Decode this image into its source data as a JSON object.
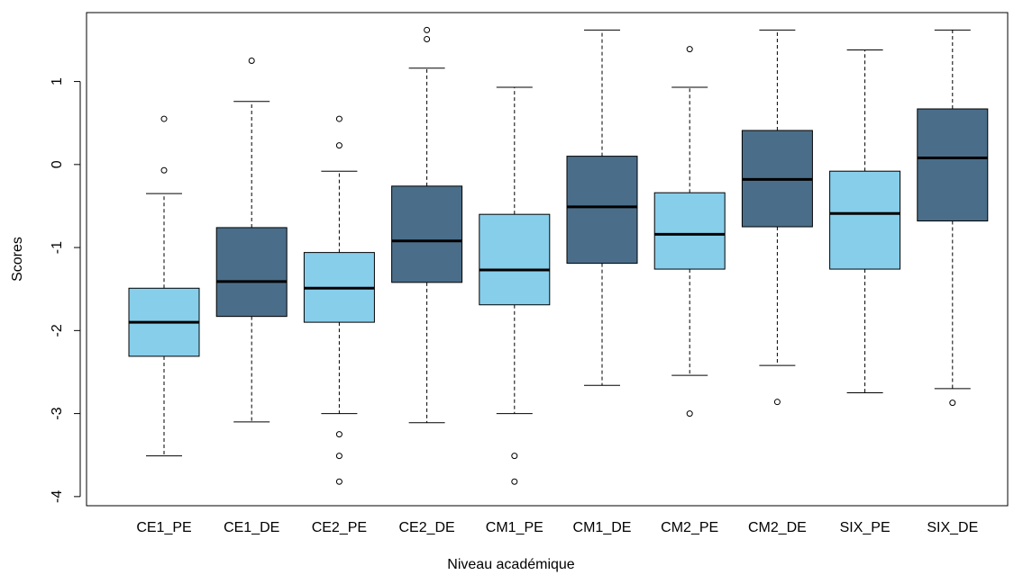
{
  "chart_data": {
    "type": "box",
    "x_label": "Niveau académique",
    "y_label": "Scores",
    "categories": [
      "CE1_PE",
      "CE1_DE",
      "CE2_PE",
      "CE2_DE",
      "CM1_PE",
      "CM1_DE",
      "CM2_PE",
      "CM2_DE",
      "SIX_PE",
      "SIX_DE"
    ],
    "boxes": [
      {
        "color": "#87ceeb",
        "whisker_low": -3.51,
        "q1": -2.31,
        "median": -1.9,
        "q3": -1.49,
        "whisker_high": -0.35,
        "outliers": [
          0.55,
          -0.07
        ]
      },
      {
        "color": "#4a6e8a",
        "whisker_low": -3.1,
        "q1": -1.83,
        "median": -1.41,
        "q3": -0.76,
        "whisker_high": 0.76,
        "outliers": [
          1.25
        ]
      },
      {
        "color": "#87ceeb",
        "whisker_low": -3.0,
        "q1": -1.9,
        "median": -1.49,
        "q3": -1.06,
        "whisker_high": -0.08,
        "outliers": [
          0.55,
          0.23,
          -3.25,
          -3.51,
          -3.82
        ]
      },
      {
        "color": "#4a6e8a",
        "whisker_low": -3.11,
        "q1": -1.42,
        "median": -0.92,
        "q3": -0.26,
        "whisker_high": 1.16,
        "outliers": [
          1.62,
          1.51
        ]
      },
      {
        "color": "#87ceeb",
        "whisker_low": -3.0,
        "q1": -1.69,
        "median": -1.27,
        "q3": -0.6,
        "whisker_high": 0.93,
        "outliers": [
          -3.51,
          -3.82
        ]
      },
      {
        "color": "#4a6e8a",
        "whisker_low": -2.66,
        "q1": -1.19,
        "median": -0.51,
        "q3": 0.1,
        "whisker_high": 1.62,
        "outliers": []
      },
      {
        "color": "#87ceeb",
        "whisker_low": -2.54,
        "q1": -1.26,
        "median": -0.84,
        "q3": -0.34,
        "whisker_high": 0.93,
        "outliers": [
          1.39,
          -3.0
        ]
      },
      {
        "color": "#4a6e8a",
        "whisker_low": -2.42,
        "q1": -0.75,
        "median": -0.18,
        "q3": 0.41,
        "whisker_high": 1.62,
        "outliers": [
          -2.86
        ]
      },
      {
        "color": "#87ceeb",
        "whisker_low": -2.75,
        "q1": -1.26,
        "median": -0.59,
        "q3": -0.08,
        "whisker_high": 1.38,
        "outliers": []
      },
      {
        "color": "#4a6e8a",
        "whisker_low": -2.7,
        "q1": -0.68,
        "median": 0.08,
        "q3": 0.67,
        "whisker_high": 1.62,
        "outliers": [
          -2.87
        ]
      }
    ],
    "ylim": [
      -4.11,
      1.83
    ],
    "yticks": [
      -4,
      -3,
      -2,
      -1,
      0,
      1
    ]
  }
}
